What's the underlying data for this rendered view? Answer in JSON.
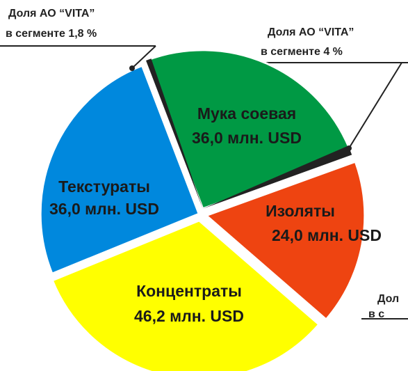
{
  "chart_data": {
    "type": "pie",
    "categories": [
      "Мука соевая",
      "Изоляты",
      "Концентраты",
      "Текстураты"
    ],
    "values": [
      36.0,
      24.0,
      46.2,
      36.0
    ],
    "value_labels": [
      "36,0 млн. USD",
      "24,0 млн. USD",
      "46,2 млн. USD",
      "36,0 млн. USD"
    ],
    "colors": [
      "#009944",
      "#ee4411",
      "#ffff00",
      "#0088dd"
    ],
    "annotations": [
      [
        "Доля АО “VITA”",
        "в сегменте 1,8 %"
      ],
      [
        "Доля АО “VITA”",
        "в сегменте 4 %"
      ],
      [
        "Дол",
        "в с"
      ]
    ]
  }
}
